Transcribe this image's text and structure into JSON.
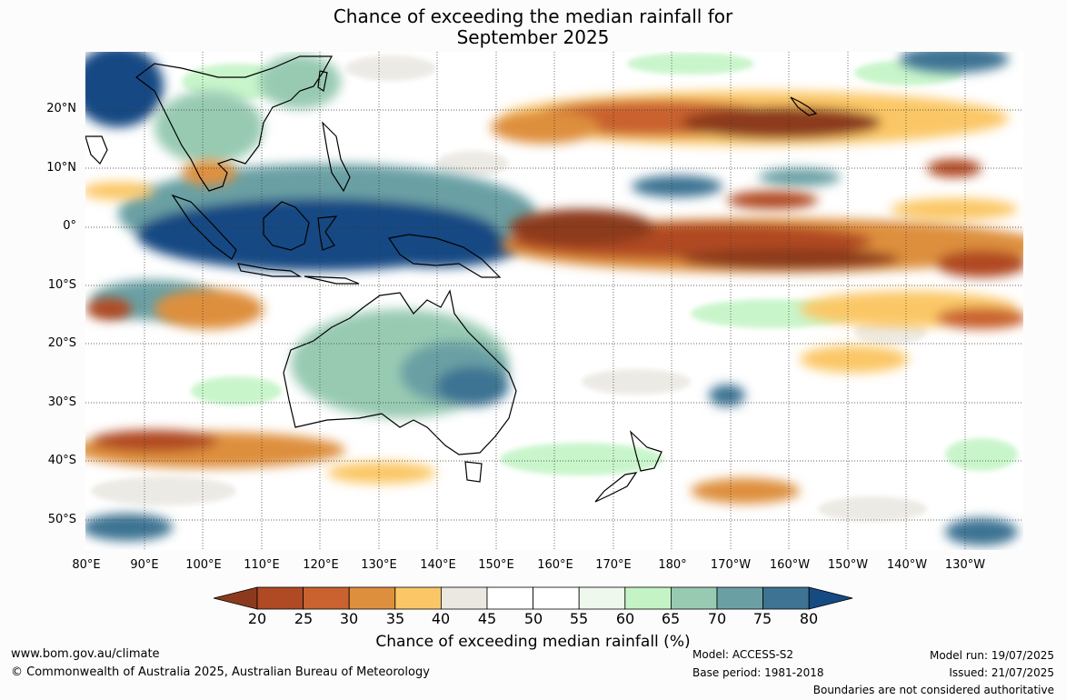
{
  "title": {
    "line1": "Chance of exceeding the median rainfall for",
    "line2": "September 2025"
  },
  "map": {
    "lon_range": [
      80,
      290
    ],
    "lat_range": [
      -55,
      30
    ],
    "lat_labels": [
      "20°N",
      "10°N",
      "0°",
      "10°S",
      "20°S",
      "30°S",
      "40°S",
      "50°S"
    ],
    "lon_labels": [
      "80°E",
      "90°E",
      "100°E",
      "110°E",
      "120°E",
      "130°E",
      "140°E",
      "150°E",
      "160°E",
      "170°E",
      "180°",
      "170°W",
      "160°W",
      "150°W",
      "140°W",
      "130°W"
    ],
    "gridlines": true
  },
  "colorbar": {
    "label": "Chance of exceeding median rainfall (%)",
    "ticks": [
      "20",
      "25",
      "30",
      "35",
      "40",
      "45",
      "50",
      "55",
      "60",
      "65",
      "70",
      "75",
      "80"
    ],
    "colors": [
      "#8c3a1e",
      "#b04a24",
      "#c9622f",
      "#de8f3e",
      "#fbc766",
      "#ebe8e2",
      "#ffffff",
      "#ffffff",
      "#eef8ec",
      "#c4f4c6",
      "#98cab2",
      "#6aa0a4",
      "#3e7393",
      "#164a83"
    ]
  },
  "footer": {
    "website": "www.bom.gov.au/climate",
    "copyright": "© Commonwealth of Australia 2025, Australian Bureau of Meteorology",
    "model": "Model: ACCESS-S2",
    "base_period": "Base period: 1981-2018",
    "model_run": "Model run: 19/07/2025",
    "issued": "Issued: 21/07/2025",
    "disclaimer": "Boundaries are not considered authoritative"
  }
}
